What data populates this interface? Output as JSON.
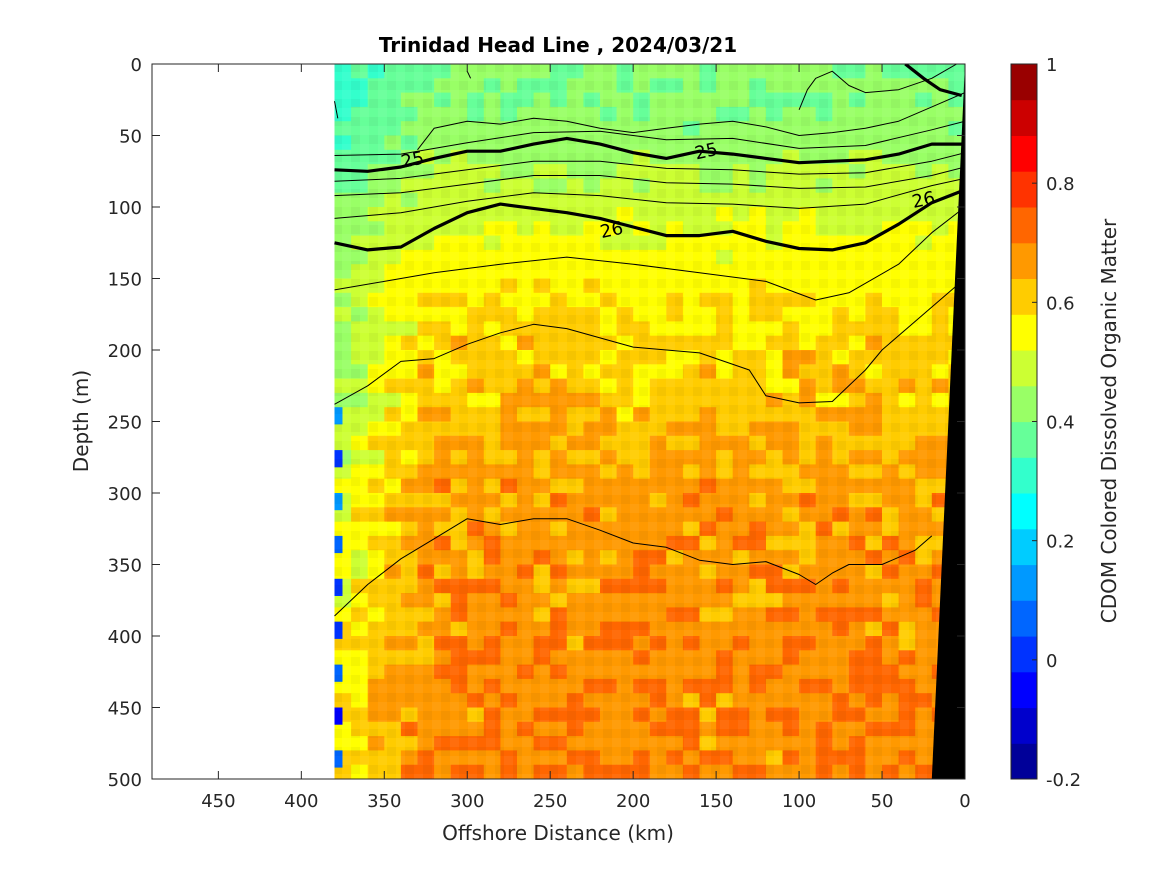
{
  "chart_data": {
    "type": "heatmap",
    "subtype": "filled-contour section with density contour lines",
    "title": "Trinidad Head Line , 2024/03/21",
    "xlabel": "Offshore Distance (km)",
    "ylabel": "Depth (m)",
    "xlim": [
      490,
      0
    ],
    "x_reversed": true,
    "xticks": [
      450,
      400,
      350,
      300,
      250,
      200,
      150,
      100,
      50,
      0
    ],
    "ylim": [
      0,
      500
    ],
    "y_reversed": true,
    "yticks": [
      0,
      50,
      100,
      150,
      200,
      250,
      300,
      350,
      400,
      450,
      500
    ],
    "grid": false,
    "data_extent_km": [
      380,
      0
    ],
    "colorbar": {
      "label": "CDOM Colored Dissolved Organic Matter",
      "range": [
        -0.2,
        1.0
      ],
      "ticks": [
        1,
        0.8,
        0.6,
        0.4,
        0.2,
        0,
        -0.2
      ],
      "levels": 20,
      "colormap": "jet"
    },
    "cdom_layers": [
      {
        "depth": 0,
        "value": 0.4,
        "offshore_value": 0.31
      },
      {
        "depth": 50,
        "value": 0.42,
        "offshore_value": 0.33
      },
      {
        "depth": 100,
        "value": 0.5,
        "offshore_value": 0.42
      },
      {
        "depth": 150,
        "value": 0.56,
        "offshore_value": 0.45
      },
      {
        "depth": 200,
        "value": 0.6,
        "offshore_value": 0.45
      },
      {
        "depth": 250,
        "value": 0.63,
        "offshore_value": 0.46
      },
      {
        "depth": 300,
        "value": 0.66,
        "offshore_value": 0.5
      },
      {
        "depth": 350,
        "value": 0.67,
        "offshore_value": 0.54
      },
      {
        "depth": 400,
        "value": 0.68,
        "offshore_value": 0.56
      },
      {
        "depth": 500,
        "value": 0.69,
        "offshore_value": 0.58
      }
    ],
    "density_contours": [
      {
        "label": "25",
        "bold": true,
        "label_positions_km": [
          [
            333,
            67
          ],
          [
            156,
            61
          ]
        ],
        "points": [
          [
            380,
            74
          ],
          [
            360,
            75
          ],
          [
            340,
            72
          ],
          [
            320,
            66
          ],
          [
            300,
            61
          ],
          [
            280,
            61
          ],
          [
            260,
            56
          ],
          [
            240,
            52
          ],
          [
            220,
            56
          ],
          [
            200,
            62
          ],
          [
            180,
            66
          ],
          [
            160,
            61
          ],
          [
            140,
            63
          ],
          [
            120,
            66
          ],
          [
            100,
            69
          ],
          [
            80,
            68
          ],
          [
            60,
            67
          ],
          [
            40,
            63
          ],
          [
            20,
            56
          ],
          [
            0,
            56
          ]
        ]
      },
      {
        "label": "26",
        "bold": true,
        "label_positions_km": [
          [
            213,
            116
          ],
          [
            25,
            95
          ]
        ],
        "points": [
          [
            380,
            125
          ],
          [
            360,
            130
          ],
          [
            340,
            128
          ],
          [
            320,
            115
          ],
          [
            300,
            104
          ],
          [
            280,
            98
          ],
          [
            260,
            101
          ],
          [
            240,
            104
          ],
          [
            220,
            108
          ],
          [
            200,
            114
          ],
          [
            180,
            120
          ],
          [
            160,
            120
          ],
          [
            140,
            117
          ],
          [
            120,
            124
          ],
          [
            100,
            129
          ],
          [
            80,
            130
          ],
          [
            60,
            125
          ],
          [
            40,
            112
          ],
          [
            20,
            97
          ],
          [
            0,
            88
          ]
        ]
      },
      {
        "label": "",
        "bold": false,
        "points": [
          [
            380,
            64
          ],
          [
            340,
            63
          ],
          [
            300,
            55
          ],
          [
            260,
            48
          ],
          [
            220,
            47
          ],
          [
            180,
            53
          ],
          [
            140,
            52
          ],
          [
            100,
            59
          ],
          [
            60,
            57
          ],
          [
            20,
            46
          ],
          [
            0,
            40
          ]
        ]
      },
      {
        "label": "",
        "bold": false,
        "points": [
          [
            380,
            82
          ],
          [
            340,
            80
          ],
          [
            300,
            74
          ],
          [
            260,
            68
          ],
          [
            220,
            68
          ],
          [
            180,
            73
          ],
          [
            140,
            74
          ],
          [
            100,
            77
          ],
          [
            60,
            76
          ],
          [
            20,
            68
          ],
          [
            0,
            62
          ]
        ]
      },
      {
        "label": "",
        "bold": false,
        "points": [
          [
            380,
            92
          ],
          [
            340,
            90
          ],
          [
            300,
            84
          ],
          [
            260,
            78
          ],
          [
            220,
            78
          ],
          [
            180,
            83
          ],
          [
            140,
            84
          ],
          [
            100,
            87
          ],
          [
            60,
            86
          ],
          [
            20,
            78
          ],
          [
            0,
            72
          ]
        ]
      },
      {
        "label": "",
        "bold": false,
        "points": [
          [
            380,
            108
          ],
          [
            340,
            104
          ],
          [
            300,
            96
          ],
          [
            260,
            90
          ],
          [
            220,
            92
          ],
          [
            180,
            97
          ],
          [
            140,
            98
          ],
          [
            100,
            101
          ],
          [
            60,
            98
          ],
          [
            20,
            85
          ],
          [
            0,
            80
          ]
        ]
      },
      {
        "label": "",
        "bold": false,
        "points": [
          [
            380,
            158
          ],
          [
            350,
            152
          ],
          [
            320,
            146
          ],
          [
            280,
            140
          ],
          [
            240,
            135
          ],
          [
            200,
            140
          ],
          [
            160,
            146
          ],
          [
            120,
            152
          ],
          [
            90,
            165
          ],
          [
            70,
            160
          ],
          [
            40,
            140
          ],
          [
            20,
            118
          ],
          [
            0,
            100
          ]
        ]
      },
      {
        "label": "",
        "bold": false,
        "points": [
          [
            380,
            238
          ],
          [
            360,
            225
          ],
          [
            340,
            208
          ],
          [
            320,
            206
          ],
          [
            300,
            196
          ],
          [
            280,
            188
          ],
          [
            260,
            182
          ],
          [
            240,
            185
          ],
          [
            200,
            198
          ],
          [
            160,
            202
          ],
          [
            130,
            214
          ],
          [
            120,
            232
          ],
          [
            100,
            237
          ],
          [
            80,
            236
          ],
          [
            60,
            214
          ],
          [
            50,
            200
          ],
          [
            30,
            180
          ],
          [
            10,
            160
          ],
          [
            0,
            150
          ]
        ]
      },
      {
        "label": "",
        "bold": false,
        "points": [
          [
            380,
            386
          ],
          [
            360,
            364
          ],
          [
            340,
            346
          ],
          [
            320,
            332
          ],
          [
            300,
            318
          ],
          [
            280,
            322
          ],
          [
            260,
            318
          ],
          [
            240,
            318
          ],
          [
            220,
            326
          ],
          [
            200,
            335
          ],
          [
            180,
            338
          ],
          [
            160,
            347
          ],
          [
            140,
            350
          ],
          [
            120,
            348
          ],
          [
            100,
            357
          ],
          [
            90,
            364
          ],
          [
            80,
            356
          ],
          [
            70,
            350
          ],
          [
            50,
            350
          ],
          [
            30,
            340
          ],
          [
            20,
            330
          ]
        ]
      },
      {
        "label": "",
        "bold": false,
        "points": [
          [
            380,
            26
          ],
          [
            378,
            38
          ]
        ]
      },
      {
        "label": "",
        "bold": false,
        "points": [
          [
            300,
            5
          ],
          [
            298,
            10
          ]
        ]
      },
      {
        "label": "",
        "bold": false,
        "points": [
          [
            330,
            60
          ],
          [
            320,
            45
          ],
          [
            300,
            40
          ],
          [
            280,
            42
          ],
          [
            260,
            38
          ],
          [
            240,
            40
          ],
          [
            220,
            45
          ],
          [
            200,
            48
          ],
          [
            180,
            45
          ],
          [
            160,
            42
          ],
          [
            140,
            40
          ],
          [
            120,
            44
          ],
          [
            100,
            50
          ],
          [
            80,
            48
          ],
          [
            60,
            45
          ],
          [
            40,
            40
          ],
          [
            20,
            30
          ],
          [
            0,
            20
          ]
        ]
      },
      {
        "label": "",
        "bold": false,
        "points": [
          [
            100,
            32
          ],
          [
            95,
            18
          ],
          [
            90,
            10
          ],
          [
            80,
            5
          ],
          [
            70,
            15
          ],
          [
            60,
            20
          ],
          [
            40,
            18
          ],
          [
            20,
            10
          ],
          [
            5,
            0
          ]
        ]
      }
    ],
    "coastal_contours": [
      {
        "bold": true,
        "points": [
          [
            36,
            0
          ],
          [
            25,
            10
          ],
          [
            15,
            18
          ],
          [
            2,
            22
          ]
        ]
      },
      {
        "bold": false,
        "points": [
          [
            0,
            0
          ],
          [
            0,
            8
          ]
        ]
      }
    ],
    "seafloor": {
      "color": "#000000",
      "shelf_points_km_depth": [
        [
          0,
          0
        ],
        [
          20,
          500
        ]
      ]
    },
    "colors": {
      "background": "#ffffff",
      "axis": "#262626",
      "contour": "#000000",
      "seafloor": "#000000"
    }
  }
}
